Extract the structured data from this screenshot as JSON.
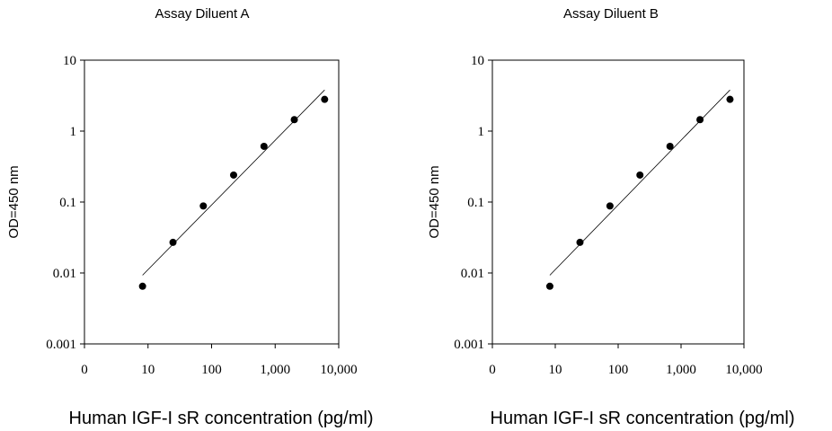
{
  "chart_data": [
    {
      "type": "scatter",
      "title": "Assay Diluent A",
      "xlabel": "Human IGF-I sR concentration (pg/ml)",
      "ylabel": "OD=450 nm",
      "xscale": "log",
      "yscale": "log",
      "xlim": [
        1,
        10000
      ],
      "ylim": [
        0.001,
        10
      ],
      "x_tick_labels": [
        "0",
        "10",
        "100",
        "1,000",
        "10,000"
      ],
      "y_tick_labels": [
        "0.001",
        "0.01",
        "0.1",
        "1",
        "10"
      ],
      "grid": false,
      "series": [
        {
          "x": [
            8.2,
            24.7,
            74.1,
            222,
            667,
            2000,
            6000
          ],
          "y": [
            0.0065,
            0.027,
            0.088,
            0.24,
            0.61,
            1.45,
            2.8
          ]
        }
      ],
      "fit_line": {
        "x": [
          8.2,
          6000
        ],
        "y": [
          0.0093,
          3.8
        ]
      }
    },
    {
      "type": "scatter",
      "title": "Assay Diluent B",
      "xlabel": "Human IGF-I sR concentration (pg/ml)",
      "ylabel": "OD=450 nm",
      "xscale": "log",
      "yscale": "log",
      "xlim": [
        1,
        10000
      ],
      "ylim": [
        0.001,
        10
      ],
      "x_tick_labels": [
        "0",
        "10",
        "100",
        "1,000",
        "10,000"
      ],
      "y_tick_labels": [
        "0.001",
        "0.01",
        "0.1",
        "1",
        "10"
      ],
      "grid": false,
      "series": [
        {
          "x": [
            8.2,
            24.7,
            74.1,
            222,
            667,
            2000,
            6000
          ],
          "y": [
            0.0065,
            0.027,
            0.088,
            0.24,
            0.61,
            1.45,
            2.8
          ]
        }
      ],
      "fit_line": {
        "x": [
          8.2,
          6000
        ],
        "y": [
          0.0093,
          3.8
        ]
      }
    }
  ]
}
